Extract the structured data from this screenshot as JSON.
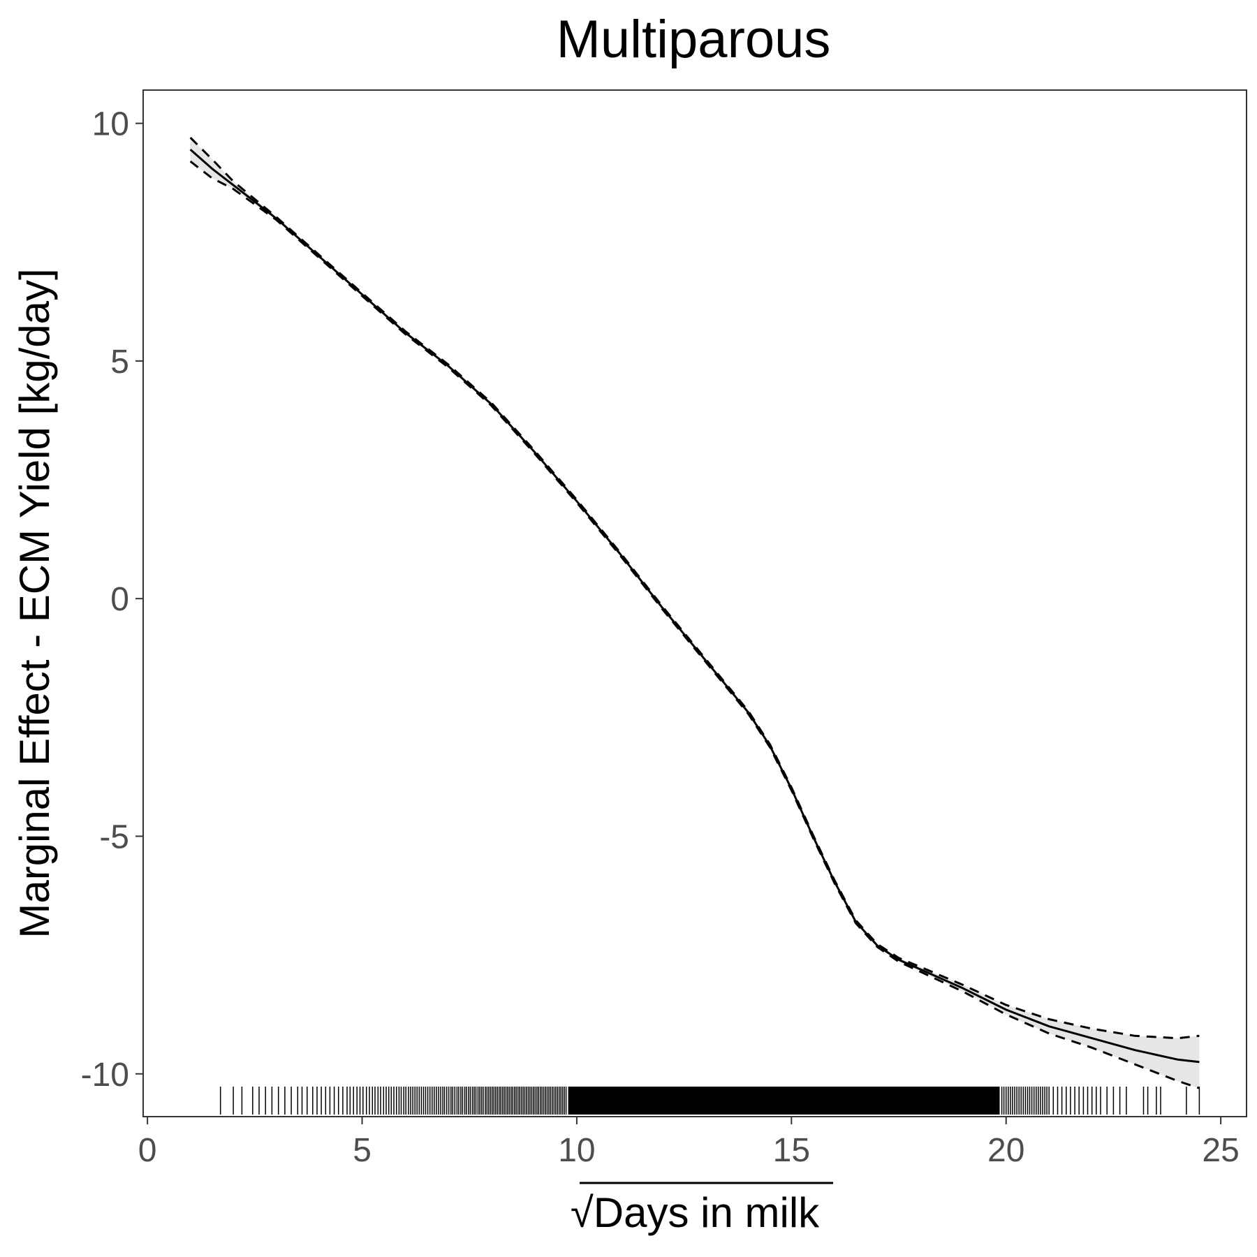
{
  "chart_data": {
    "type": "line",
    "title": "Multiparous",
    "xlabel_radical": "√",
    "xlabel": "Days in milk",
    "ylabel": "Marginal Effect - ECM Yield [kg/day]",
    "xlim": [
      -0.1,
      25.6
    ],
    "ylim": [
      -10.9,
      10.7
    ],
    "xticks": [
      0,
      5,
      10,
      15,
      20,
      25
    ],
    "xtick_labels": [
      "0",
      "5",
      "10",
      "15",
      "20",
      "25"
    ],
    "yticks": [
      -10,
      -5,
      0,
      5,
      10
    ],
    "ytick_labels": [
      "-10",
      "-5",
      "0",
      "5",
      "10"
    ],
    "grid": false,
    "series": [
      {
        "role": "estimate",
        "style": "solid",
        "x": [
          1.0,
          1.5,
          2,
          3,
          4,
          5,
          6,
          7,
          8,
          9,
          10,
          11,
          12,
          13,
          14,
          14.5,
          15,
          15.5,
          16,
          16.5,
          17,
          17.5,
          18,
          19,
          20,
          21,
          22,
          23,
          24,
          24.5
        ],
        "y": [
          9.45,
          9.05,
          8.7,
          8.0,
          7.2,
          6.4,
          5.6,
          4.9,
          4.1,
          3.1,
          2.05,
          0.95,
          -0.2,
          -1.3,
          -2.4,
          -3.1,
          -4.0,
          -5.0,
          -5.95,
          -6.8,
          -7.3,
          -7.6,
          -7.8,
          -8.2,
          -8.65,
          -9.0,
          -9.25,
          -9.5,
          -9.7,
          -9.75
        ]
      },
      {
        "role": "upper",
        "style": "dashed",
        "x": [
          1.0,
          1.5,
          2,
          3,
          4,
          5,
          6,
          7,
          8,
          9,
          10,
          11,
          12,
          13,
          14,
          14.5,
          15,
          15.5,
          16,
          16.5,
          17,
          17.5,
          18,
          19,
          20,
          21,
          22,
          23,
          24,
          24.5
        ],
        "y": [
          9.7,
          9.25,
          8.78,
          8.03,
          7.23,
          6.43,
          5.63,
          4.93,
          4.13,
          3.13,
          2.08,
          0.98,
          -0.17,
          -1.27,
          -2.37,
          -3.07,
          -3.97,
          -4.97,
          -5.92,
          -6.77,
          -7.27,
          -7.56,
          -7.75,
          -8.13,
          -8.55,
          -8.85,
          -9.05,
          -9.2,
          -9.25,
          -9.2
        ]
      },
      {
        "role": "lower",
        "style": "dashed",
        "x": [
          1.0,
          1.5,
          2,
          3,
          4,
          5,
          6,
          7,
          8,
          9,
          10,
          11,
          12,
          13,
          14,
          14.5,
          15,
          15.5,
          16,
          16.5,
          17,
          17.5,
          18,
          19,
          20,
          21,
          22,
          23,
          24,
          24.5
        ],
        "y": [
          9.2,
          8.85,
          8.62,
          7.97,
          7.17,
          6.37,
          5.57,
          4.87,
          4.07,
          3.07,
          2.02,
          0.92,
          -0.23,
          -1.33,
          -2.43,
          -3.13,
          -4.03,
          -5.03,
          -5.98,
          -6.83,
          -7.33,
          -7.64,
          -7.85,
          -8.27,
          -8.75,
          -9.15,
          -9.45,
          -9.8,
          -10.15,
          -10.3
        ]
      }
    ],
    "rug": {
      "sparse_x": [
        1.7,
        2.0,
        2.2,
        2.45,
        2.6,
        2.75,
        2.9,
        3.05,
        3.2,
        3.35,
        3.5,
        3.6,
        3.72,
        3.85,
        3.95,
        4.05,
        4.15,
        4.25,
        4.35,
        4.45,
        4.55,
        4.65,
        4.72,
        4.8,
        4.88,
        4.95,
        5.02,
        5.1,
        5.17,
        5.24,
        5.3,
        5.37,
        5.43,
        5.5,
        5.56,
        5.62,
        5.68,
        5.74,
        5.8,
        5.86,
        5.91,
        5.97,
        6.02,
        6.08,
        6.13,
        6.18,
        6.23,
        6.28,
        6.33,
        6.38,
        6.43,
        6.48,
        6.53,
        6.58,
        6.63,
        6.68,
        6.73,
        6.78,
        6.83,
        6.88,
        6.92,
        6.97,
        7.02,
        7.07,
        7.11,
        7.16,
        7.21,
        7.25,
        7.3,
        7.34,
        7.39,
        7.43,
        7.48,
        7.52,
        7.57,
        7.61,
        7.65,
        7.7,
        7.74,
        7.78,
        7.82,
        7.87,
        7.91,
        7.95,
        7.99,
        8.03,
        8.07,
        8.11,
        8.15,
        8.19,
        8.23,
        8.27,
        8.31,
        8.35,
        8.39,
        8.43,
        8.47,
        8.51,
        8.55,
        8.59,
        8.63,
        8.67,
        8.71,
        8.75,
        8.79,
        8.83,
        8.87,
        8.91,
        8.95,
        8.99,
        9.03,
        9.07,
        9.11,
        9.15,
        9.19,
        9.23,
        9.27,
        9.31,
        9.35,
        9.39,
        9.43,
        9.47,
        9.51,
        9.55,
        9.59,
        9.63,
        9.67,
        9.71,
        9.75,
        19.9,
        19.95,
        20.0,
        20.05,
        20.1,
        20.15,
        20.2,
        20.25,
        20.3,
        20.35,
        20.4,
        20.45,
        20.5,
        20.55,
        20.6,
        20.65,
        20.7,
        20.75,
        20.8,
        20.85,
        20.9,
        20.95,
        21.0,
        21.1,
        21.2,
        21.3,
        21.4,
        21.5,
        21.6,
        21.7,
        21.8,
        21.9,
        22.0,
        22.1,
        22.2,
        22.35,
        22.5,
        22.65,
        22.8,
        23.2,
        23.3,
        23.5,
        23.6,
        24.2,
        24.5
      ],
      "dense_range": [
        9.8,
        19.85
      ]
    }
  }
}
